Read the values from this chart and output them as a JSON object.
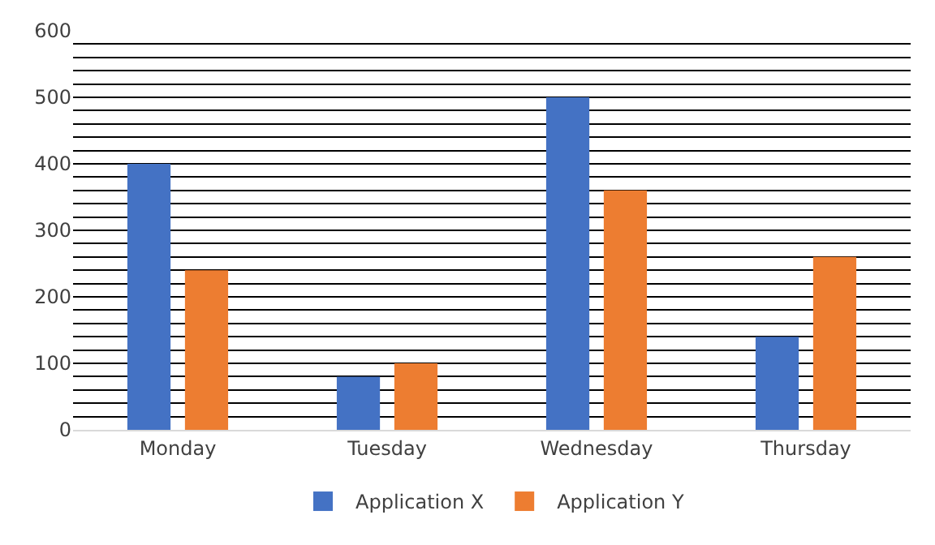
{
  "chart_data": {
    "type": "bar",
    "categories": [
      "Monday",
      "Tuesday",
      "Wednesday",
      "Thursday"
    ],
    "series": [
      {
        "name": "Application X",
        "color": "#4472c4",
        "values": [
          400,
          80,
          500,
          140
        ]
      },
      {
        "name": "Application Y",
        "color": "#ed7d31",
        "values": [
          240,
          100,
          360,
          260
        ]
      }
    ],
    "ylim": [
      0,
      600
    ],
    "yticks": [
      0,
      {
        "value": 20,
        "label": null
      },
      {
        "value": 40,
        "label": null
      },
      {
        "value": 60,
        "label": null
      },
      {
        "value": 80,
        "label": null
      },
      100,
      {
        "value": 120,
        "label": null
      },
      {
        "value": 140,
        "label": null
      },
      {
        "value": 160,
        "label": null
      },
      {
        "value": 180,
        "label": null
      },
      200,
      {
        "value": 220,
        "label": null
      },
      {
        "value": 240,
        "label": null
      },
      {
        "value": 260,
        "label": null
      },
      {
        "value": 280,
        "label": null
      },
      300,
      {
        "value": 320,
        "label": null
      },
      {
        "value": 340,
        "label": null
      },
      {
        "value": 360,
        "label": null
      },
      {
        "value": 380,
        "label": null
      },
      400,
      {
        "value": 420,
        "label": null
      },
      {
        "value": 440,
        "label": null
      },
      {
        "value": 460,
        "label": null
      },
      {
        "value": 480,
        "label": null
      },
      500,
      {
        "value": 520,
        "label": null
      },
      {
        "value": 540,
        "label": null
      },
      {
        "value": 560,
        "label": null
      },
      {
        "value": 580,
        "label": null
      },
      600
    ],
    "grid": "y",
    "legend": "bottom"
  }
}
